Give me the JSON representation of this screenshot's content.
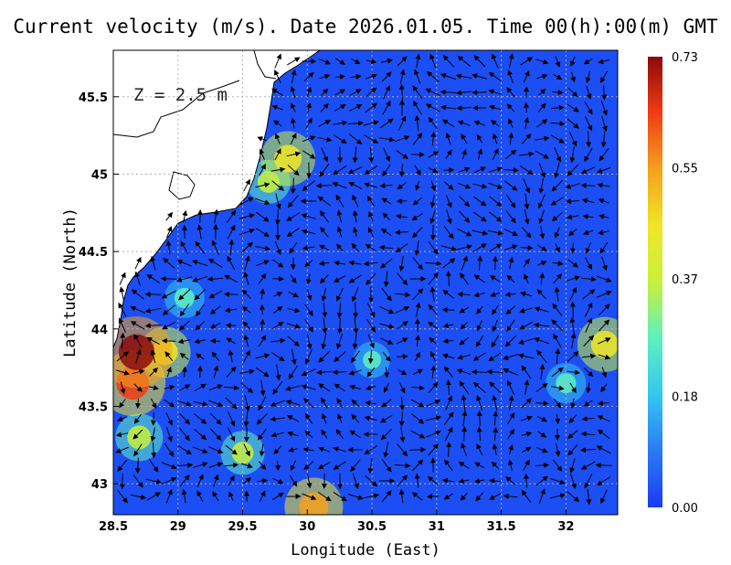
{
  "chart_data": {
    "type": "heatmap",
    "title": "Current velocity (m/s). Date 2026.01.05. Time 00(h):00(m) GMT",
    "xlabel": "Longitude (East)",
    "ylabel": "Latitude (North)",
    "annotation": "Z = 2.5 m",
    "xlim": [
      28.5,
      32.4
    ],
    "ylim": [
      42.8,
      45.8
    ],
    "x_ticks": [
      {
        "value": 28.5,
        "label": "28.5"
      },
      {
        "value": 29,
        "label": "29"
      },
      {
        "value": 29.5,
        "label": "29.5"
      },
      {
        "value": 30,
        "label": "30"
      },
      {
        "value": 30.5,
        "label": "30.5"
      },
      {
        "value": 31,
        "label": "31"
      },
      {
        "value": 31.5,
        "label": "31.5"
      },
      {
        "value": 32,
        "label": "32"
      }
    ],
    "y_ticks": [
      {
        "value": 43,
        "label": "43"
      },
      {
        "value": 43.5,
        "label": "43.5"
      },
      {
        "value": 44,
        "label": "44"
      },
      {
        "value": 44.5,
        "label": "44.5"
      },
      {
        "value": 45,
        "label": "45"
      },
      {
        "value": 45.5,
        "label": "45.5"
      }
    ],
    "grid": true,
    "colorbar": {
      "min": 0.0,
      "max": 0.73,
      "ticks": [
        {
          "value": 0.0,
          "label": "0.00"
        },
        {
          "value": 0.18,
          "label": "0.18"
        },
        {
          "value": 0.37,
          "label": "0.37"
        },
        {
          "value": 0.55,
          "label": "0.55"
        },
        {
          "value": 0.73,
          "label": "0.73"
        }
      ],
      "colors": [
        "#1a3cf0",
        "#2a7af5",
        "#33c8f0",
        "#5ef0c0",
        "#c8f03c",
        "#f0e628",
        "#f5a01e",
        "#f03c14",
        "#8c0a0a"
      ]
    },
    "colors": {
      "sea_background": "#1c4ef5",
      "land": "#ffffff",
      "coastline": "#000000",
      "grid": "#b4b4b4",
      "arrow": "#000000"
    },
    "high_speed_regions": [
      {
        "lon": 28.68,
        "lat": 43.85,
        "speed": 0.73
      },
      {
        "lon": 28.65,
        "lat": 43.65,
        "speed": 0.65
      },
      {
        "lon": 28.7,
        "lat": 43.3,
        "speed": 0.4
      },
      {
        "lon": 28.9,
        "lat": 43.85,
        "speed": 0.45
      },
      {
        "lon": 29.5,
        "lat": 43.2,
        "speed": 0.35
      },
      {
        "lon": 30.05,
        "lat": 42.85,
        "speed": 0.55
      },
      {
        "lon": 29.85,
        "lat": 45.1,
        "speed": 0.5
      },
      {
        "lon": 29.7,
        "lat": 44.95,
        "speed": 0.35
      },
      {
        "lon": 32.3,
        "lat": 43.9,
        "speed": 0.5
      },
      {
        "lon": 32.0,
        "lat": 43.65,
        "speed": 0.3
      },
      {
        "lon": 29.05,
        "lat": 44.2,
        "speed": 0.3
      },
      {
        "lon": 30.5,
        "lat": 43.8,
        "speed": 0.25
      }
    ]
  }
}
